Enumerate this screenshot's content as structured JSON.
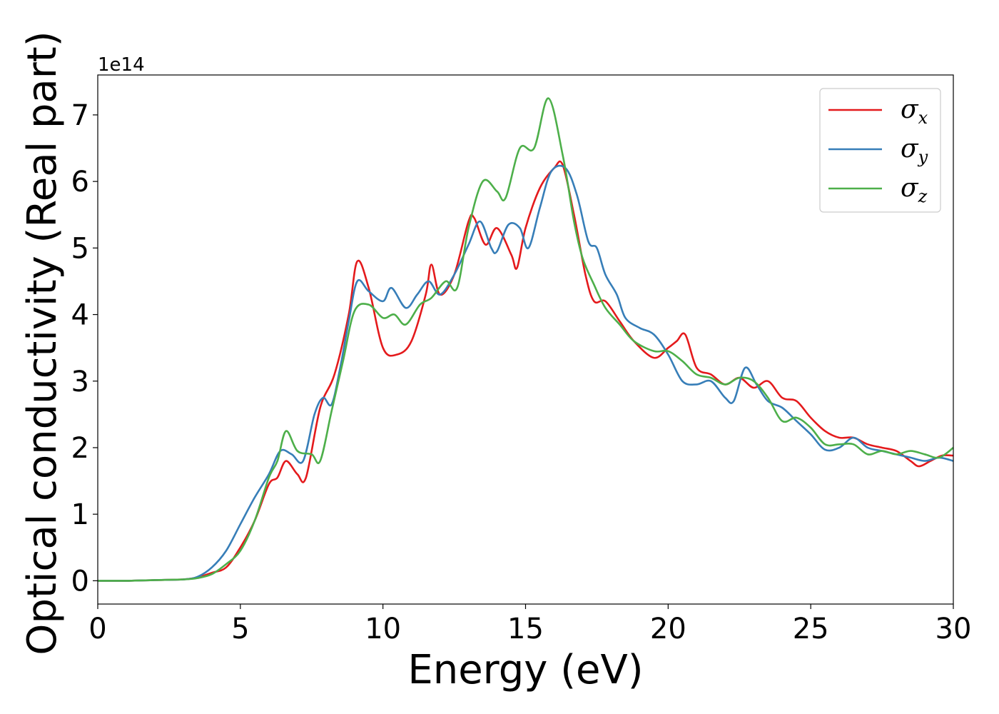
{
  "chart_data": {
    "type": "line",
    "xlabel": "Energy (eV)",
    "ylabel": "Optical conductivity (Real part)",
    "y_offset_label": "1e14",
    "xlim": [
      0,
      30
    ],
    "ylim": [
      -0.35,
      7.6
    ],
    "x_ticks": [
      0,
      5,
      10,
      15,
      20,
      25,
      30
    ],
    "y_ticks": [
      0,
      1,
      2,
      3,
      4,
      5,
      6,
      7
    ],
    "grid": false,
    "legend_position": "top-right",
    "legend": [
      {
        "symbol": "σ",
        "subscript": "x",
        "color": "#e41a1c"
      },
      {
        "symbol": "σ",
        "subscript": "y",
        "color": "#377eb8"
      },
      {
        "symbol": "σ",
        "subscript": "z",
        "color": "#4daf4a"
      }
    ],
    "series": [
      {
        "color": "#e41a1c",
        "points": [
          [
            0,
            0
          ],
          [
            1,
            0
          ],
          [
            2,
            0.01
          ],
          [
            3,
            0.02
          ],
          [
            3.5,
            0.05
          ],
          [
            4,
            0.12
          ],
          [
            4.5,
            0.2
          ],
          [
            5,
            0.5
          ],
          [
            5.5,
            0.9
          ],
          [
            6,
            1.45
          ],
          [
            6.3,
            1.55
          ],
          [
            6.6,
            1.8
          ],
          [
            7,
            1.6
          ],
          [
            7.3,
            1.55
          ],
          [
            7.8,
            2.6
          ],
          [
            8.3,
            3.1
          ],
          [
            8.8,
            4.0
          ],
          [
            9.1,
            4.8
          ],
          [
            9.5,
            4.4
          ],
          [
            10,
            3.5
          ],
          [
            10.5,
            3.4
          ],
          [
            11,
            3.6
          ],
          [
            11.5,
            4.3
          ],
          [
            11.7,
            4.75
          ],
          [
            12,
            4.3
          ],
          [
            12.5,
            4.6
          ],
          [
            13,
            5.4
          ],
          [
            13.2,
            5.45
          ],
          [
            13.6,
            5.05
          ],
          [
            14,
            5.3
          ],
          [
            14.5,
            4.9
          ],
          [
            14.7,
            4.7
          ],
          [
            15,
            5.3
          ],
          [
            15.5,
            5.9
          ],
          [
            16,
            6.2
          ],
          [
            16.3,
            6.25
          ],
          [
            16.7,
            5.5
          ],
          [
            17.1,
            4.6
          ],
          [
            17.4,
            4.2
          ],
          [
            17.8,
            4.2
          ],
          [
            18.3,
            3.9
          ],
          [
            18.8,
            3.6
          ],
          [
            19.5,
            3.35
          ],
          [
            20,
            3.5
          ],
          [
            20.3,
            3.6
          ],
          [
            20.6,
            3.7
          ],
          [
            21,
            3.2
          ],
          [
            21.5,
            3.1
          ],
          [
            22,
            2.95
          ],
          [
            22.5,
            3.05
          ],
          [
            23,
            2.9
          ],
          [
            23.5,
            3.0
          ],
          [
            24,
            2.75
          ],
          [
            24.5,
            2.7
          ],
          [
            25,
            2.45
          ],
          [
            25.5,
            2.25
          ],
          [
            26,
            2.15
          ],
          [
            26.5,
            2.15
          ],
          [
            27,
            2.05
          ],
          [
            27.5,
            2.0
          ],
          [
            28,
            1.95
          ],
          [
            28.5,
            1.8
          ],
          [
            28.8,
            1.72
          ],
          [
            29.2,
            1.8
          ],
          [
            29.6,
            1.88
          ],
          [
            30,
            1.88
          ]
        ]
      },
      {
        "color": "#377eb8",
        "points": [
          [
            0,
            0
          ],
          [
            1,
            0
          ],
          [
            2,
            0.01
          ],
          [
            3,
            0.02
          ],
          [
            3.5,
            0.06
          ],
          [
            4,
            0.2
          ],
          [
            4.5,
            0.45
          ],
          [
            5,
            0.85
          ],
          [
            5.5,
            1.25
          ],
          [
            6,
            1.6
          ],
          [
            6.4,
            1.95
          ],
          [
            6.8,
            1.9
          ],
          [
            7.2,
            1.8
          ],
          [
            7.6,
            2.5
          ],
          [
            7.9,
            2.75
          ],
          [
            8.2,
            2.65
          ],
          [
            8.5,
            3.2
          ],
          [
            8.8,
            3.9
          ],
          [
            9.1,
            4.5
          ],
          [
            9.5,
            4.35
          ],
          [
            10,
            4.2
          ],
          [
            10.3,
            4.4
          ],
          [
            10.8,
            4.1
          ],
          [
            11.2,
            4.3
          ],
          [
            11.6,
            4.5
          ],
          [
            12,
            4.3
          ],
          [
            12.5,
            4.6
          ],
          [
            13,
            5.05
          ],
          [
            13.4,
            5.4
          ],
          [
            13.8,
            5.0
          ],
          [
            14,
            4.95
          ],
          [
            14.4,
            5.35
          ],
          [
            14.8,
            5.3
          ],
          [
            15.1,
            5.0
          ],
          [
            15.5,
            5.6
          ],
          [
            15.9,
            6.15
          ],
          [
            16.4,
            6.2
          ],
          [
            16.8,
            5.8
          ],
          [
            17.2,
            5.1
          ],
          [
            17.5,
            5.0
          ],
          [
            17.8,
            4.6
          ],
          [
            18.2,
            4.3
          ],
          [
            18.5,
            3.95
          ],
          [
            19,
            3.8
          ],
          [
            19.5,
            3.7
          ],
          [
            20,
            3.4
          ],
          [
            20.5,
            3.0
          ],
          [
            21,
            2.95
          ],
          [
            21.5,
            3.0
          ],
          [
            22,
            2.75
          ],
          [
            22.3,
            2.7
          ],
          [
            22.7,
            3.2
          ],
          [
            23.1,
            2.95
          ],
          [
            23.5,
            2.7
          ],
          [
            24,
            2.6
          ],
          [
            24.5,
            2.4
          ],
          [
            25,
            2.2
          ],
          [
            25.5,
            1.97
          ],
          [
            26,
            2.0
          ],
          [
            26.5,
            2.15
          ],
          [
            27,
            2.0
          ],
          [
            27.5,
            1.95
          ],
          [
            28,
            1.9
          ],
          [
            28.5,
            1.85
          ],
          [
            29,
            1.8
          ],
          [
            29.5,
            1.85
          ],
          [
            30,
            1.8
          ]
        ]
      },
      {
        "color": "#4daf4a",
        "points": [
          [
            0,
            0
          ],
          [
            1,
            0
          ],
          [
            2,
            0.01
          ],
          [
            3,
            0.02
          ],
          [
            3.5,
            0.04
          ],
          [
            4,
            0.1
          ],
          [
            4.5,
            0.25
          ],
          [
            5,
            0.45
          ],
          [
            5.5,
            0.9
          ],
          [
            6,
            1.55
          ],
          [
            6.3,
            1.8
          ],
          [
            6.6,
            2.25
          ],
          [
            7,
            1.95
          ],
          [
            7.5,
            1.9
          ],
          [
            7.8,
            1.8
          ],
          [
            8.2,
            2.55
          ],
          [
            8.6,
            3.3
          ],
          [
            9,
            4.05
          ],
          [
            9.5,
            4.15
          ],
          [
            10,
            3.95
          ],
          [
            10.4,
            4.0
          ],
          [
            10.8,
            3.85
          ],
          [
            11.3,
            4.15
          ],
          [
            11.7,
            4.25
          ],
          [
            12.2,
            4.5
          ],
          [
            12.6,
            4.4
          ],
          [
            13,
            5.3
          ],
          [
            13.5,
            6.0
          ],
          [
            14,
            5.85
          ],
          [
            14.3,
            5.75
          ],
          [
            14.8,
            6.5
          ],
          [
            15.3,
            6.5
          ],
          [
            15.8,
            7.25
          ],
          [
            16.3,
            6.4
          ],
          [
            16.7,
            5.4
          ],
          [
            17,
            4.85
          ],
          [
            17.4,
            4.45
          ],
          [
            17.8,
            4.1
          ],
          [
            18.3,
            3.85
          ],
          [
            18.8,
            3.6
          ],
          [
            19.5,
            3.45
          ],
          [
            20,
            3.45
          ],
          [
            20.5,
            3.3
          ],
          [
            21,
            3.1
          ],
          [
            21.5,
            3.05
          ],
          [
            22,
            2.95
          ],
          [
            22.5,
            3.05
          ],
          [
            23,
            3.0
          ],
          [
            23.5,
            2.75
          ],
          [
            24,
            2.4
          ],
          [
            24.5,
            2.45
          ],
          [
            25,
            2.3
          ],
          [
            25.5,
            2.05
          ],
          [
            26,
            2.05
          ],
          [
            26.5,
            2.05
          ],
          [
            27,
            1.9
          ],
          [
            27.5,
            1.95
          ],
          [
            28,
            1.9
          ],
          [
            28.5,
            1.95
          ],
          [
            29,
            1.9
          ],
          [
            29.5,
            1.85
          ],
          [
            30,
            2.0
          ]
        ]
      }
    ]
  }
}
